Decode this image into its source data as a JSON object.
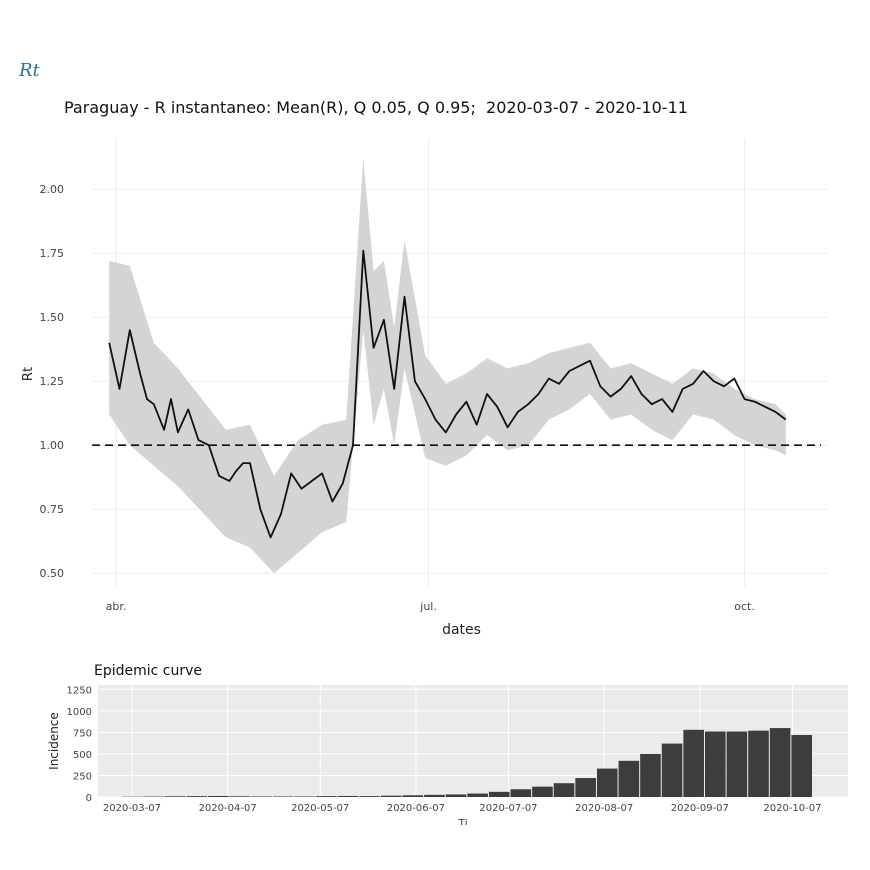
{
  "section_heading": "Rt",
  "chart_data": [
    {
      "type": "line",
      "title": "Paraguay - R instantaneo: Mean(R), Q 0.05, Q 0.95;  2020-03-07 - 2020-10-11",
      "xlabel": "dates",
      "ylabel": "Rt",
      "x_range": [
        "2020-03-25",
        "2020-10-25"
      ],
      "ylim": [
        0.45,
        2.2
      ],
      "yticks": [
        0.5,
        0.75,
        1.0,
        1.25,
        1.5,
        1.75,
        2.0
      ],
      "ytick_labels": [
        "0.50",
        "0.75",
        "1.00",
        "1.25",
        "1.50",
        "1.75",
        "2.00"
      ],
      "xticks": [
        {
          "date": "2020-04-01",
          "label": "abr."
        },
        {
          "date": "2020-07-01",
          "label": "jul."
        },
        {
          "date": "2020-10-01",
          "label": "oct."
        }
      ],
      "reference_line": {
        "y": 1.0,
        "style": "dashed"
      },
      "grid": true,
      "series": [
        {
          "name": "Mean(R)",
          "x": [
            "2020-03-30",
            "2020-04-02",
            "2020-04-05",
            "2020-04-08",
            "2020-04-10",
            "2020-04-12",
            "2020-04-15",
            "2020-04-17",
            "2020-04-19",
            "2020-04-22",
            "2020-04-25",
            "2020-04-28",
            "2020-05-01",
            "2020-05-04",
            "2020-05-06",
            "2020-05-08",
            "2020-05-10",
            "2020-05-13",
            "2020-05-16",
            "2020-05-19",
            "2020-05-22",
            "2020-05-25",
            "2020-05-28",
            "2020-05-31",
            "2020-06-03",
            "2020-06-06",
            "2020-06-09",
            "2020-06-12",
            "2020-06-15",
            "2020-06-18",
            "2020-06-21",
            "2020-06-24",
            "2020-06-27",
            "2020-06-30",
            "2020-07-03",
            "2020-07-06",
            "2020-07-09",
            "2020-07-12",
            "2020-07-15",
            "2020-07-18",
            "2020-07-21",
            "2020-07-24",
            "2020-07-27",
            "2020-07-30",
            "2020-08-02",
            "2020-08-05",
            "2020-08-08",
            "2020-08-11",
            "2020-08-14",
            "2020-08-17",
            "2020-08-20",
            "2020-08-23",
            "2020-08-26",
            "2020-08-29",
            "2020-09-01",
            "2020-09-04",
            "2020-09-07",
            "2020-09-10",
            "2020-09-13",
            "2020-09-16",
            "2020-09-19",
            "2020-09-22",
            "2020-09-25",
            "2020-09-28",
            "2020-10-01",
            "2020-10-04",
            "2020-10-07",
            "2020-10-10",
            "2020-10-13"
          ],
          "values": [
            1.4,
            1.22,
            1.45,
            1.28,
            1.18,
            1.16,
            1.06,
            1.18,
            1.05,
            1.14,
            1.02,
            1.0,
            0.88,
            0.86,
            0.9,
            0.93,
            0.93,
            0.75,
            0.64,
            0.73,
            0.89,
            0.83,
            0.86,
            0.89,
            0.78,
            0.85,
            1.0,
            1.76,
            1.38,
            1.49,
            1.22,
            1.58,
            1.25,
            1.18,
            1.1,
            1.05,
            1.12,
            1.17,
            1.08,
            1.2,
            1.15,
            1.07,
            1.13,
            1.16,
            1.2,
            1.26,
            1.24,
            1.29,
            1.31,
            1.33,
            1.23,
            1.19,
            1.22,
            1.27,
            1.2,
            1.16,
            1.18,
            1.13,
            1.22,
            1.24,
            1.29,
            1.25,
            1.23,
            1.26,
            1.18,
            1.17,
            1.15,
            1.13,
            1.1
          ]
        },
        {
          "name": "Q 0.95",
          "x": [
            "2020-03-30",
            "2020-04-05",
            "2020-04-12",
            "2020-04-19",
            "2020-04-26",
            "2020-05-03",
            "2020-05-10",
            "2020-05-17",
            "2020-05-24",
            "2020-05-31",
            "2020-06-07",
            "2020-06-12",
            "2020-06-15",
            "2020-06-18",
            "2020-06-21",
            "2020-06-24",
            "2020-06-30",
            "2020-07-06",
            "2020-07-12",
            "2020-07-18",
            "2020-07-24",
            "2020-07-30",
            "2020-08-05",
            "2020-08-11",
            "2020-08-17",
            "2020-08-23",
            "2020-08-29",
            "2020-09-04",
            "2020-09-10",
            "2020-09-16",
            "2020-09-22",
            "2020-09-28",
            "2020-10-04",
            "2020-10-10",
            "2020-10-13"
          ],
          "values": [
            1.72,
            1.7,
            1.4,
            1.3,
            1.18,
            1.06,
            1.08,
            0.88,
            1.02,
            1.08,
            1.1,
            2.12,
            1.68,
            1.72,
            1.46,
            1.8,
            1.35,
            1.24,
            1.28,
            1.34,
            1.3,
            1.32,
            1.36,
            1.38,
            1.4,
            1.3,
            1.32,
            1.28,
            1.24,
            1.3,
            1.28,
            1.22,
            1.18,
            1.16,
            1.12
          ]
        },
        {
          "name": "Q 0.05",
          "x": [
            "2020-03-30",
            "2020-04-05",
            "2020-04-12",
            "2020-04-19",
            "2020-04-26",
            "2020-05-03",
            "2020-05-10",
            "2020-05-17",
            "2020-05-24",
            "2020-05-31",
            "2020-06-07",
            "2020-06-12",
            "2020-06-15",
            "2020-06-18",
            "2020-06-21",
            "2020-06-24",
            "2020-06-30",
            "2020-07-06",
            "2020-07-12",
            "2020-07-18",
            "2020-07-24",
            "2020-07-30",
            "2020-08-05",
            "2020-08-11",
            "2020-08-17",
            "2020-08-23",
            "2020-08-29",
            "2020-09-04",
            "2020-09-10",
            "2020-09-16",
            "2020-09-22",
            "2020-09-28",
            "2020-10-04",
            "2020-10-10",
            "2020-10-13"
          ],
          "values": [
            1.12,
            1.0,
            0.92,
            0.84,
            0.74,
            0.64,
            0.6,
            0.5,
            0.58,
            0.66,
            0.7,
            1.45,
            1.08,
            1.22,
            1.0,
            1.3,
            0.95,
            0.92,
            0.96,
            1.04,
            0.98,
            1.0,
            1.1,
            1.14,
            1.2,
            1.1,
            1.12,
            1.06,
            1.02,
            1.12,
            1.1,
            1.04,
            1.0,
            0.98,
            0.96
          ]
        }
      ]
    },
    {
      "type": "bar",
      "title": "Epidemic curve",
      "ylabel": "Incidence",
      "xlabel": "Ti",
      "x_range": [
        "2020-02-25",
        "2020-10-25"
      ],
      "ylim": [
        0,
        1300
      ],
      "yticks": [
        0,
        250,
        500,
        750,
        1000,
        1250
      ],
      "xticks": [
        "2020-03-07",
        "2020-04-07",
        "2020-05-07",
        "2020-06-07",
        "2020-07-07",
        "2020-08-07",
        "2020-09-07",
        "2020-10-07"
      ],
      "grid": true,
      "categories": [
        "2020-03-07",
        "2020-03-14",
        "2020-03-21",
        "2020-03-28",
        "2020-04-04",
        "2020-04-11",
        "2020-04-18",
        "2020-04-25",
        "2020-05-02",
        "2020-05-09",
        "2020-05-16",
        "2020-05-23",
        "2020-05-30",
        "2020-06-06",
        "2020-06-13",
        "2020-06-20",
        "2020-06-27",
        "2020-07-04",
        "2020-07-11",
        "2020-07-18",
        "2020-07-25",
        "2020-08-01",
        "2020-08-08",
        "2020-08-15",
        "2020-08-22",
        "2020-08-29",
        "2020-09-05",
        "2020-09-12",
        "2020-09-19",
        "2020-09-26",
        "2020-10-03",
        "2020-10-10"
      ],
      "values": [
        3,
        5,
        8,
        10,
        12,
        8,
        6,
        6,
        6,
        10,
        12,
        10,
        15,
        20,
        25,
        30,
        40,
        60,
        90,
        120,
        160,
        220,
        330,
        420,
        500,
        620,
        780,
        760,
        760,
        770,
        800,
        720
      ]
    }
  ]
}
